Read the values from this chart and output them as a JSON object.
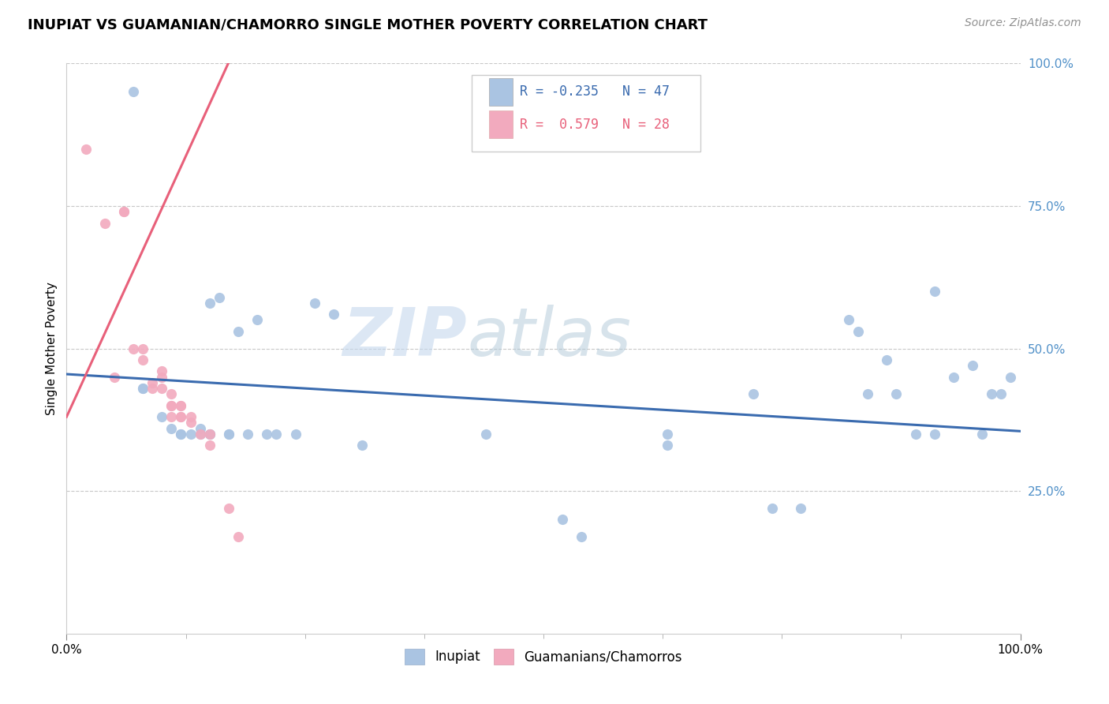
{
  "title": "INUPIAT VS GUAMANIAN/CHAMORRO SINGLE MOTHER POVERTY CORRELATION CHART",
  "source": "Source: ZipAtlas.com",
  "ylabel": "Single Mother Poverty",
  "xlim": [
    0.0,
    1.0
  ],
  "ylim": [
    0.0,
    1.0
  ],
  "inupiat_R": -0.235,
  "inupiat_N": 47,
  "guamanian_R": 0.579,
  "guamanian_N": 28,
  "inupiat_color": "#aac4e2",
  "guamanian_color": "#f2aabe",
  "inupiat_line_color": "#3a6baf",
  "guamanian_line_color": "#e8607a",
  "watermark_zip": "ZIP",
  "watermark_atlas": "atlas",
  "background_color": "#ffffff",
  "grid_color": "#c8c8c8",
  "title_fontsize": 13,
  "right_label_color": "#5090c8",
  "inupiat_x": [
    0.07,
    0.08,
    0.08,
    0.1,
    0.11,
    0.12,
    0.12,
    0.13,
    0.14,
    0.14,
    0.15,
    0.15,
    0.15,
    0.16,
    0.17,
    0.17,
    0.18,
    0.19,
    0.2,
    0.21,
    0.22,
    0.24,
    0.26,
    0.28,
    0.31,
    0.44,
    0.52,
    0.54,
    0.63,
    0.63,
    0.72,
    0.74,
    0.77,
    0.82,
    0.83,
    0.84,
    0.86,
    0.87,
    0.89,
    0.91,
    0.91,
    0.93,
    0.95,
    0.96,
    0.97,
    0.98,
    0.99
  ],
  "inupiat_y": [
    0.95,
    0.43,
    0.43,
    0.38,
    0.36,
    0.35,
    0.35,
    0.35,
    0.36,
    0.35,
    0.35,
    0.35,
    0.58,
    0.59,
    0.35,
    0.35,
    0.53,
    0.35,
    0.55,
    0.35,
    0.35,
    0.35,
    0.58,
    0.56,
    0.33,
    0.35,
    0.2,
    0.17,
    0.35,
    0.33,
    0.42,
    0.22,
    0.22,
    0.55,
    0.53,
    0.42,
    0.48,
    0.42,
    0.35,
    0.35,
    0.6,
    0.45,
    0.47,
    0.35,
    0.42,
    0.42,
    0.45
  ],
  "guamanian_x": [
    0.02,
    0.04,
    0.05,
    0.06,
    0.06,
    0.07,
    0.08,
    0.08,
    0.09,
    0.09,
    0.1,
    0.1,
    0.1,
    0.11,
    0.11,
    0.11,
    0.11,
    0.12,
    0.12,
    0.12,
    0.12,
    0.13,
    0.13,
    0.14,
    0.15,
    0.15,
    0.17,
    0.18
  ],
  "guamanian_y": [
    0.85,
    0.72,
    0.45,
    0.74,
    0.74,
    0.5,
    0.48,
    0.5,
    0.43,
    0.44,
    0.43,
    0.45,
    0.46,
    0.38,
    0.4,
    0.4,
    0.42,
    0.38,
    0.38,
    0.4,
    0.4,
    0.37,
    0.38,
    0.35,
    0.33,
    0.35,
    0.22,
    0.17
  ],
  "inupiat_trend_x": [
    0.0,
    1.0
  ],
  "inupiat_trend_y": [
    0.455,
    0.355
  ],
  "guamanian_trend_x0": 0.0,
  "guamanian_trend_x1": 0.175,
  "guamanian_trend_y0": 0.38,
  "guamanian_trend_y1": 1.02
}
